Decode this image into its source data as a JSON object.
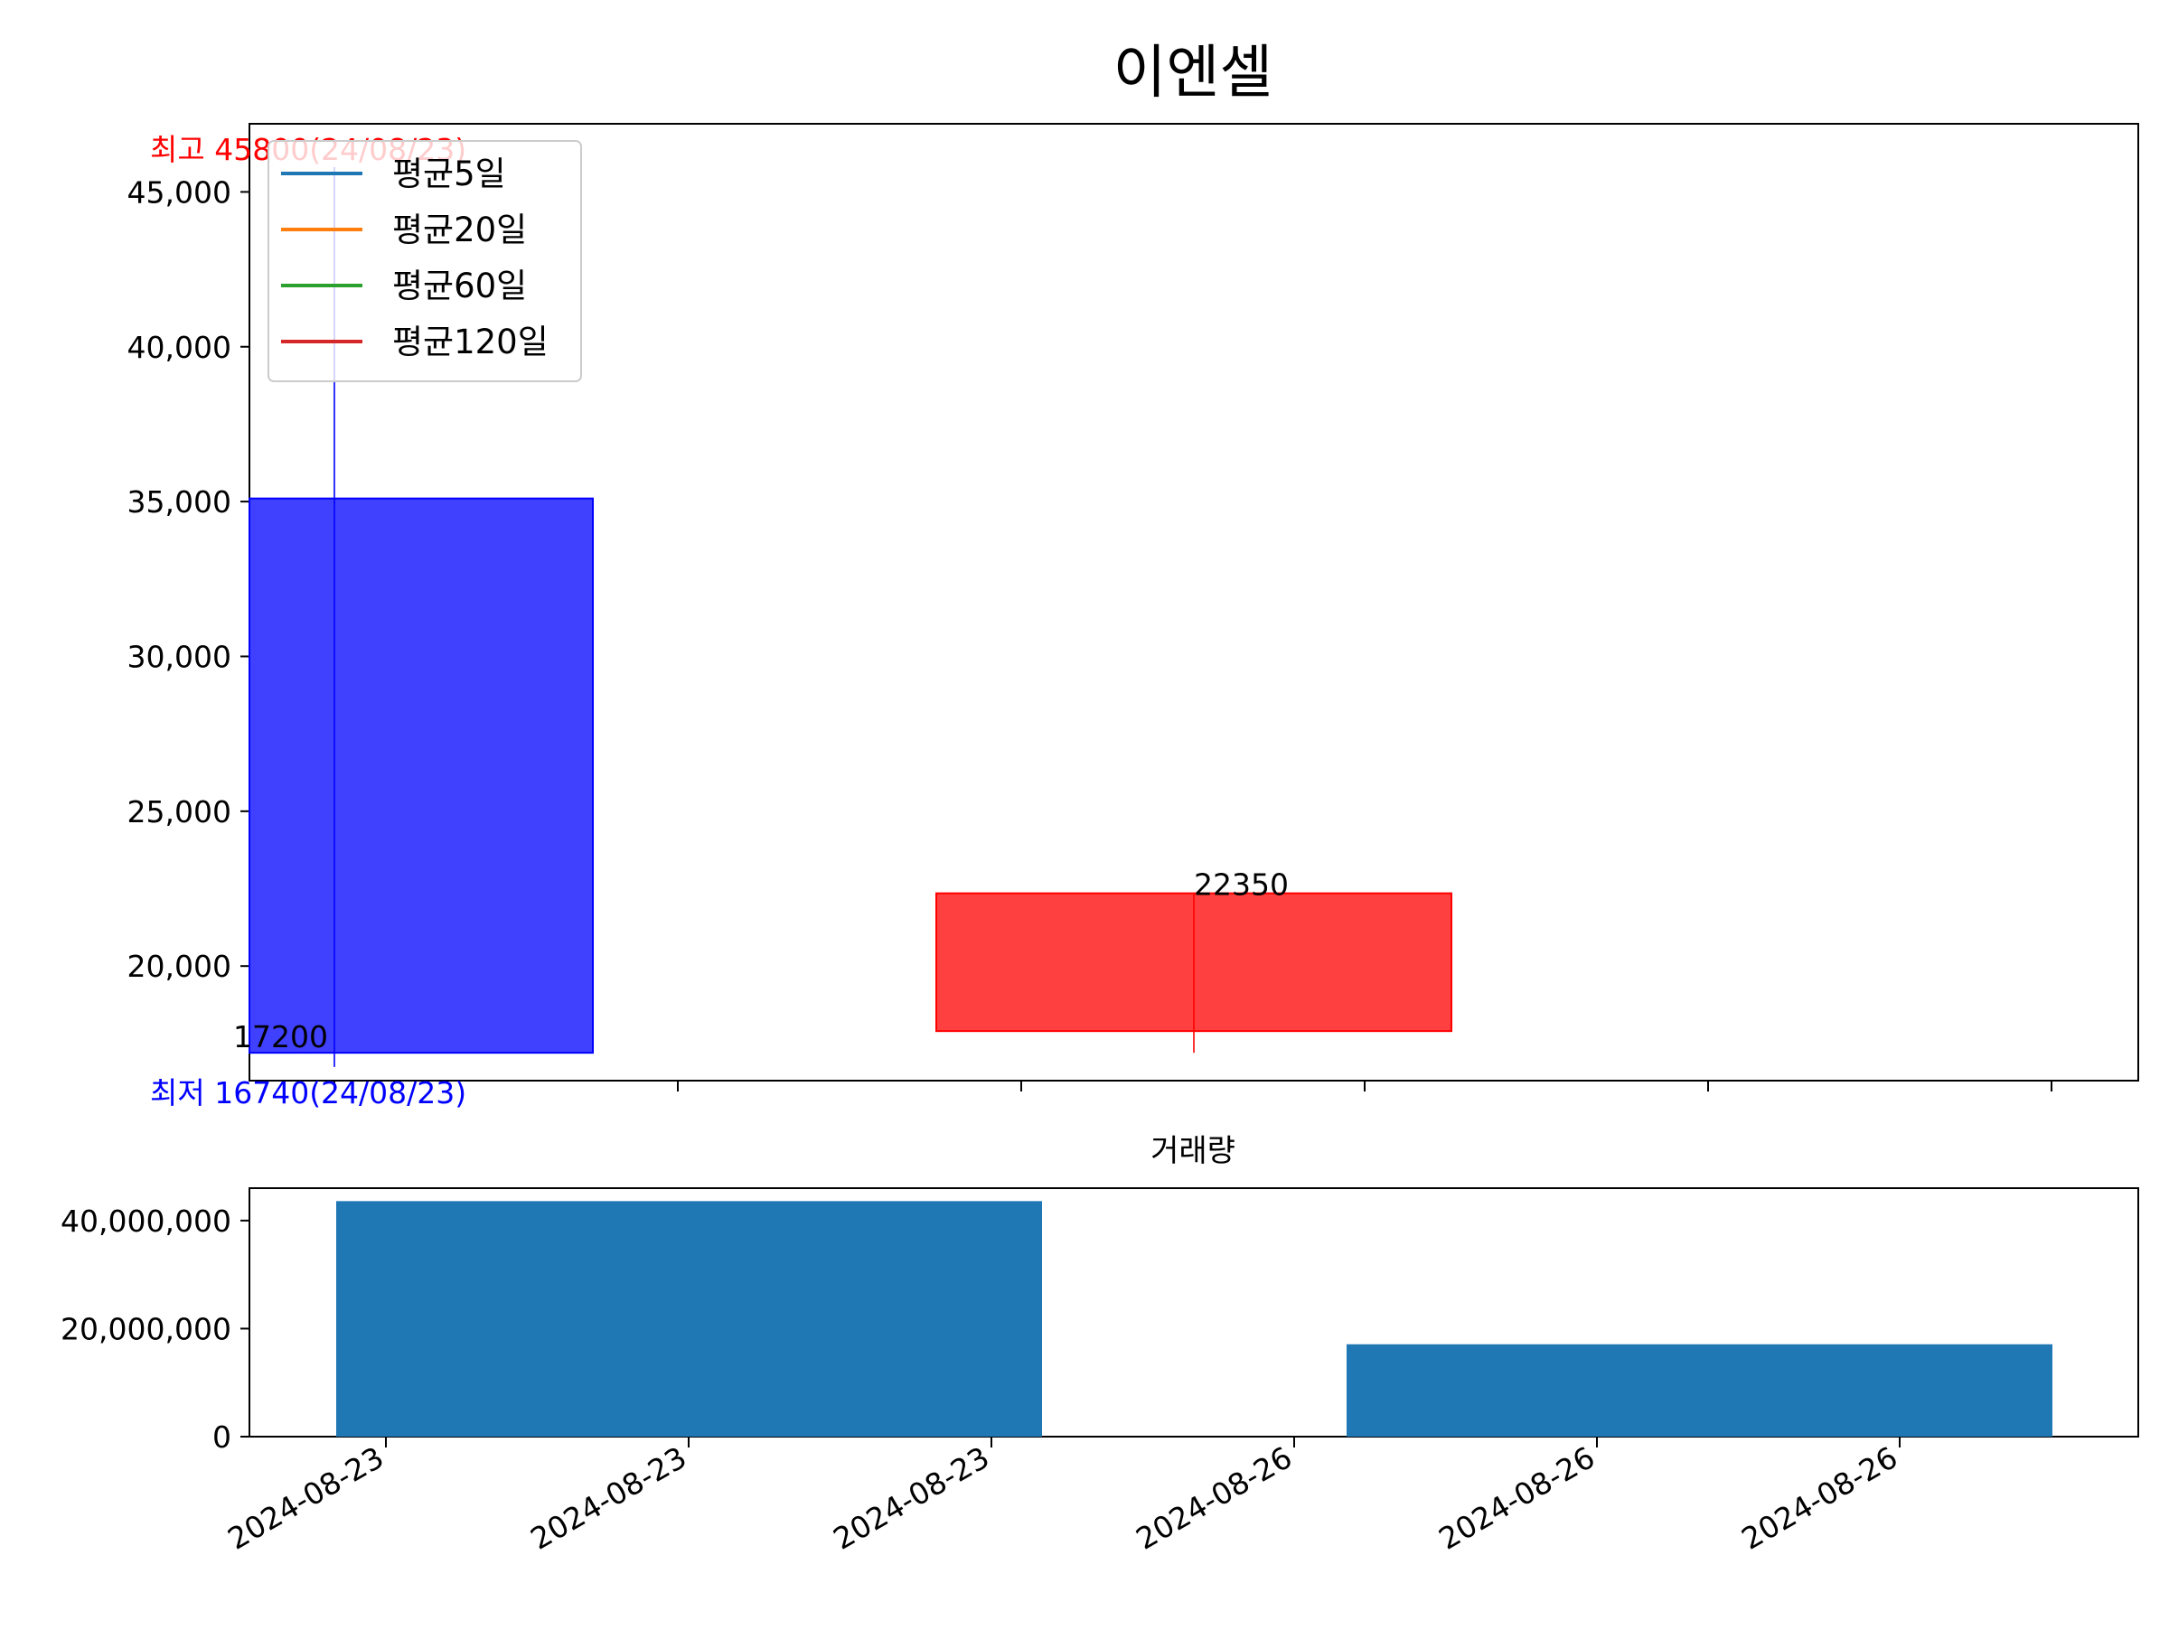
{
  "chart_data": [
    {
      "type": "candlestick",
      "title": "이엔셀",
      "ylim": [
        16300,
        47200
      ],
      "y_ticks": [
        "20,000",
        "25,000",
        "30,000",
        "35,000",
        "40,000",
        "45,000"
      ],
      "legend": {
        "placement": "top-left",
        "entries": [
          {
            "name": "평균5일",
            "color": "#1f77b4"
          },
          {
            "name": "평균20일",
            "color": "#ff7f0e"
          },
          {
            "name": "평균60일",
            "color": "#2ca02c"
          },
          {
            "name": "평균120일",
            "color": "#d62728"
          }
        ]
      },
      "candles": [
        {
          "date": "2024-08-23",
          "open": 35100,
          "high": 45800,
          "low": 16740,
          "close": 17200,
          "color": "#0000ff"
        },
        {
          "date": "2024-08-26",
          "open": 17900,
          "high": 22350,
          "low": 17200,
          "close": 22350,
          "color": "#ff0000"
        }
      ],
      "annotations": {
        "high": "최고 45800(24/08/23)",
        "low": "최저 16740(24/08/23)",
        "close_labels": [
          "17200",
          "22350"
        ]
      }
    },
    {
      "type": "bar",
      "title": "거래량",
      "ylim": [
        0,
        46000000
      ],
      "y_ticks": [
        "0",
        "20,000,000",
        "40,000,000"
      ],
      "x_ticks": [
        "2024-08-23",
        "2024-08-23",
        "2024-08-23",
        "2024-08-26",
        "2024-08-26",
        "2024-08-26"
      ],
      "series": [
        {
          "values": [
            43600000,
            17100000
          ],
          "color": "#1f77b4"
        }
      ],
      "categories": [
        "2024-08-23",
        "2024-08-26"
      ]
    }
  ]
}
